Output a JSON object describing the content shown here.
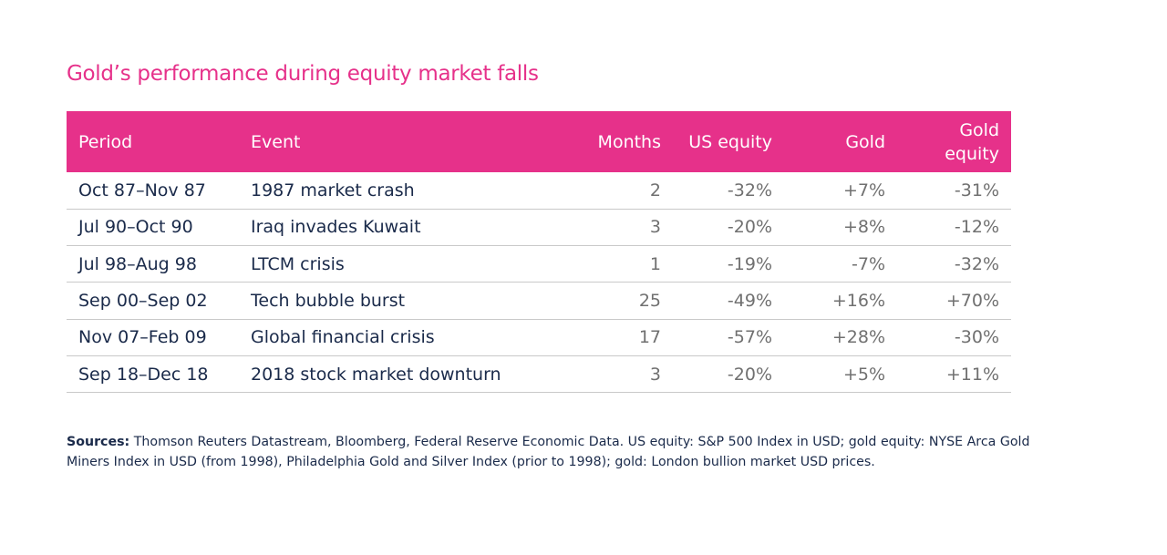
{
  "title": "Gold’s performance during equity market falls",
  "table": {
    "headers": {
      "period": "Period",
      "event": "Event",
      "months": "Months",
      "us_equity": "US equity",
      "gold": "Gold",
      "gold_equity_line1": "Gold",
      "gold_equity_line2": "equity"
    },
    "rows": [
      {
        "period": "Oct 87–Nov 87",
        "event": "1987 market crash",
        "months": "2",
        "us_equity": "-32%",
        "gold": "+7%",
        "gold_equity": "-31%"
      },
      {
        "period": "Jul 90–Oct 90",
        "event": "Iraq invades Kuwait",
        "months": "3",
        "us_equity": "-20%",
        "gold": "+8%",
        "gold_equity": "-12%"
      },
      {
        "period": "Jul 98–Aug 98",
        "event": "LTCM crisis",
        "months": "1",
        "us_equity": "-19%",
        "gold": "-7%",
        "gold_equity": "-32%"
      },
      {
        "period": "Sep 00–Sep 02",
        "event": "Tech bubble burst",
        "months": "25",
        "us_equity": "-49%",
        "gold": "+16%",
        "gold_equity": "+70%"
      },
      {
        "period": "Nov 07–Feb 09",
        "event": "Global financial crisis",
        "months": "17",
        "us_equity": "-57%",
        "gold": "+28%",
        "gold_equity": "-30%"
      },
      {
        "period": "Sep 18–Dec 18",
        "event": "2018 stock market downturn",
        "months": "3",
        "us_equity": "-20%",
        "gold": "+5%",
        "gold_equity": "+11%"
      }
    ]
  },
  "sources": {
    "label": "Sources:",
    "text": " Thomson Reuters Datastream, Bloomberg, Federal Reserve Economic Data. US equity: S&P 500 Index in USD; gold equity: NYSE Arca Gold Miners Index in USD (from 1998), Philadelphia Gold and Silver Index (prior to 1998); gold: London bullion market USD prices."
  },
  "colors": {
    "accent": "#e6318a",
    "text": "#1a2a4a",
    "muted": "#707070"
  }
}
